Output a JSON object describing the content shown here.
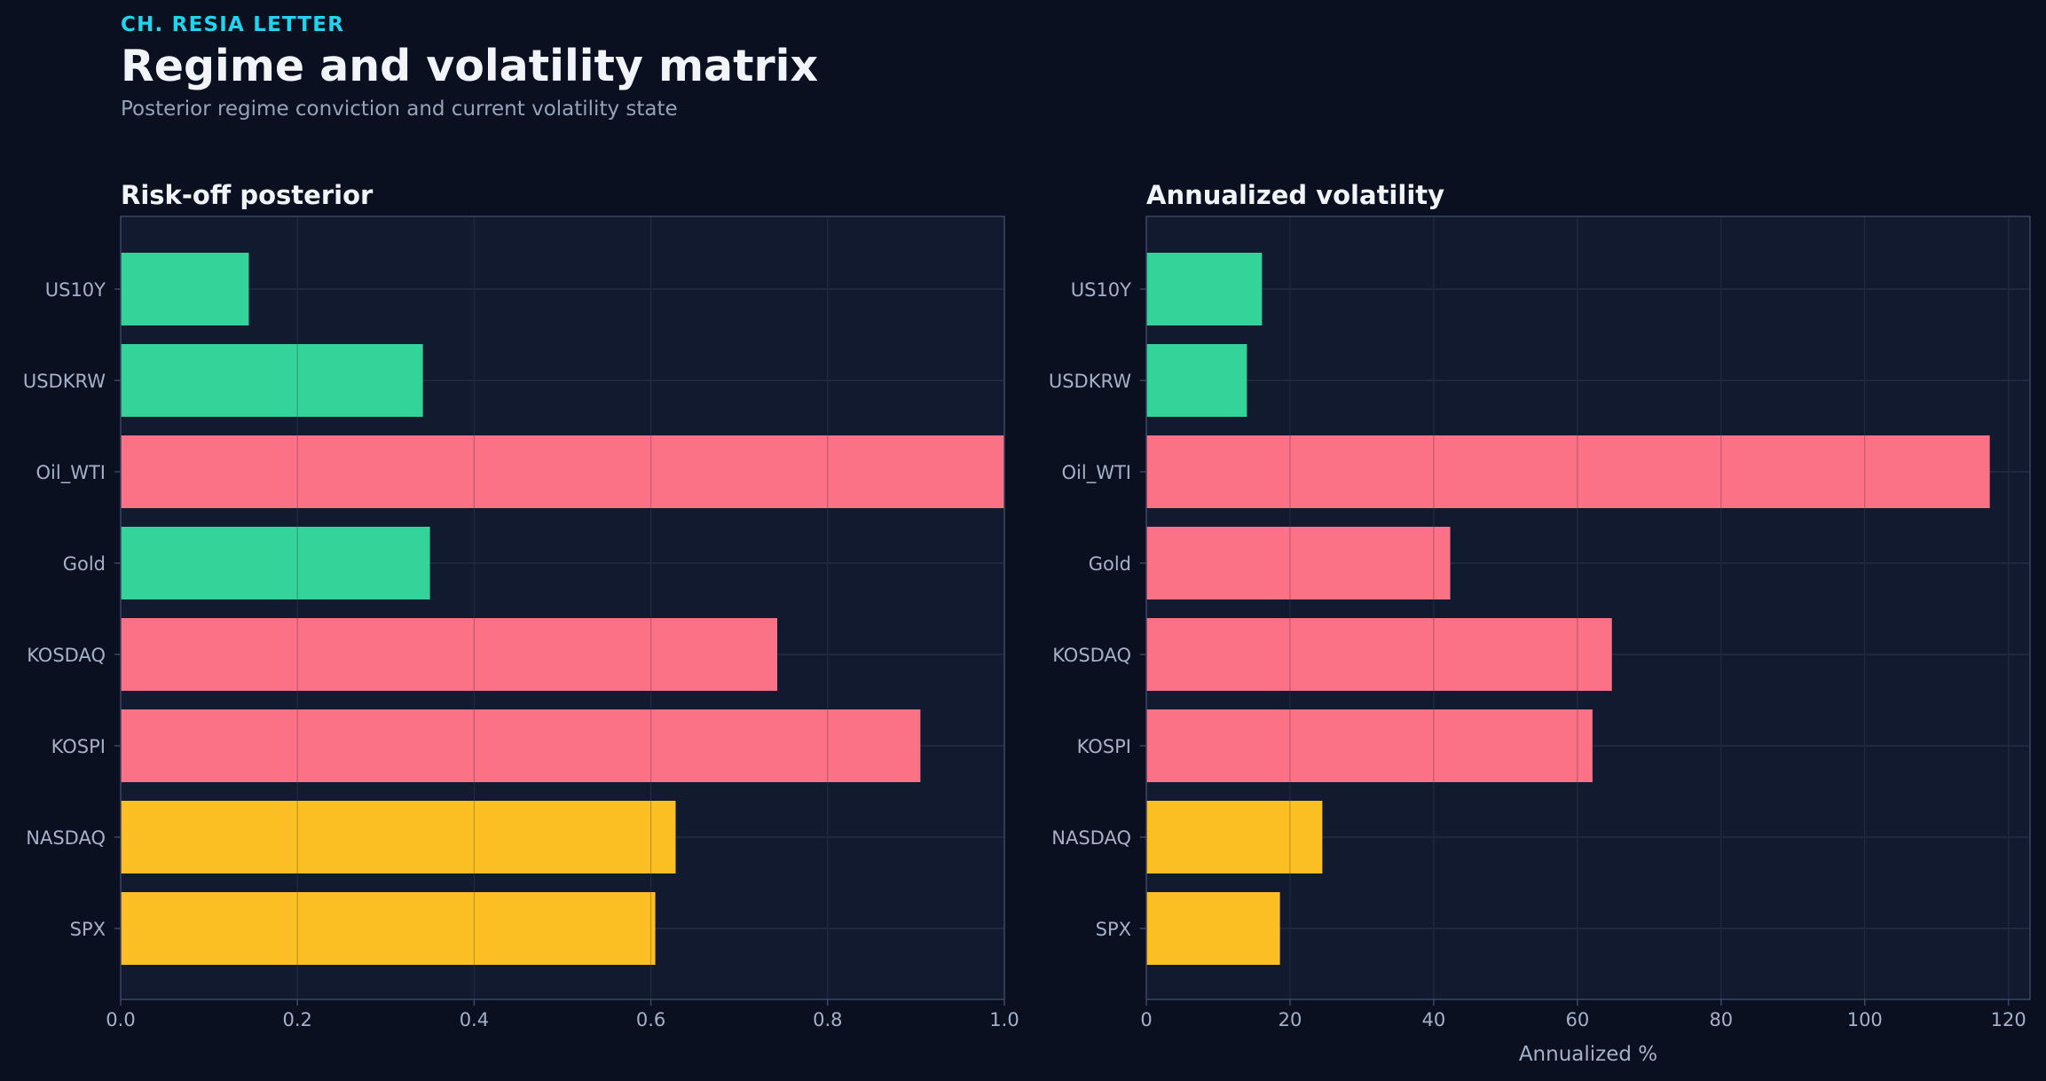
{
  "header": {
    "eyebrow": "CH. RESIA LETTER",
    "title": "Regime and volatility matrix",
    "subtitle": "Posterior regime conviction and current volatility state"
  },
  "colors": {
    "background": "#0a1020",
    "panel": "#111a2e",
    "panel_border": "#3a4666",
    "grid": "#26324a",
    "tick_text": "#a5b1c8",
    "title_text": "#f1f5f9",
    "green": "#34d399",
    "red": "#fb7185",
    "yellow": "#fbbf24"
  },
  "chart_data": [
    {
      "type": "bar",
      "orientation": "horizontal",
      "title": "Risk-off posterior",
      "xlabel": "",
      "ylabel": "",
      "xlim": [
        0,
        1.0
      ],
      "xticks": [
        "0.0",
        "0.2",
        "0.4",
        "0.6",
        "0.8",
        "1.0"
      ],
      "xtick_values": [
        0,
        0.2,
        0.4,
        0.6,
        0.8,
        1.0
      ],
      "grid": true,
      "categories": [
        "US10Y",
        "USDKRW",
        "Oil_WTI",
        "Gold",
        "KOSDAQ",
        "KOSPI",
        "NASDAQ",
        "SPX"
      ],
      "values": [
        0.145,
        0.342,
        1.0,
        0.35,
        0.743,
        0.905,
        0.628,
        0.605
      ],
      "bar_colors": [
        "#34d399",
        "#34d399",
        "#fb7185",
        "#34d399",
        "#fb7185",
        "#fb7185",
        "#fbbf24",
        "#fbbf24"
      ]
    },
    {
      "type": "bar",
      "orientation": "horizontal",
      "title": "Annualized volatility",
      "xlabel": "Annualized %",
      "ylabel": "",
      "xlim": [
        0,
        123
      ],
      "xticks": [
        "0",
        "20",
        "40",
        "60",
        "80",
        "100",
        "120"
      ],
      "xtick_values": [
        0,
        20,
        40,
        60,
        80,
        100,
        120
      ],
      "grid": true,
      "categories": [
        "US10Y",
        "USDKRW",
        "Oil_WTI",
        "Gold",
        "KOSDAQ",
        "KOSPI",
        "NASDAQ",
        "SPX"
      ],
      "values": [
        16.1,
        14.0,
        117.4,
        42.3,
        64.8,
        62.1,
        24.5,
        18.6
      ],
      "bar_colors": [
        "#34d399",
        "#34d399",
        "#fb7185",
        "#fb7185",
        "#fb7185",
        "#fb7185",
        "#fbbf24",
        "#fbbf24"
      ]
    }
  ]
}
